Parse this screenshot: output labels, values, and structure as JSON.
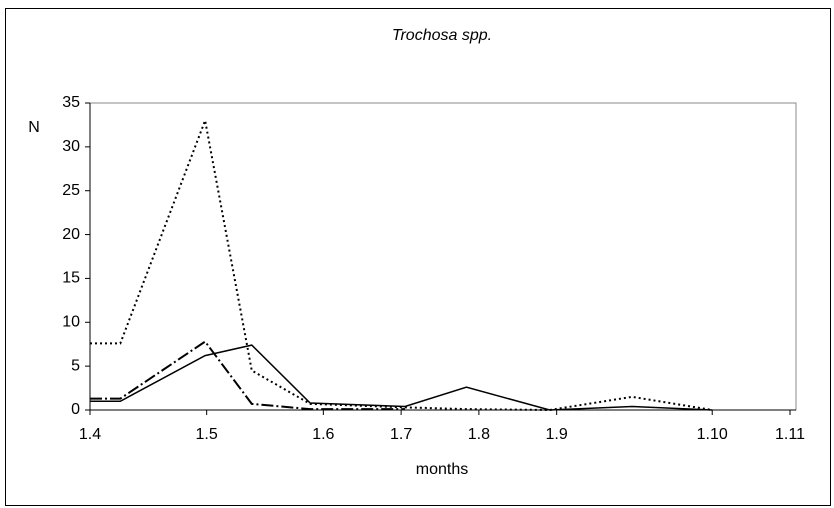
{
  "chart_data": {
    "type": "line",
    "title": "Trochosa spp.",
    "y_label": "N",
    "x_label": "months",
    "x": [
      0,
      0.39,
      1.48,
      2.08,
      2.83,
      4.05,
      4.84,
      5.91,
      6.97,
      8.0
    ],
    "xlim": [
      0,
      9
    ],
    "xticks": [
      {
        "value": 0,
        "label": "1.4"
      },
      {
        "value": 1.5,
        "label": "1.5"
      },
      {
        "value": 3,
        "label": "1.6"
      },
      {
        "value": 4,
        "label": "1.7"
      },
      {
        "value": 5,
        "label": "1.8"
      },
      {
        "value": 6,
        "label": "1.9"
      },
      {
        "value": 8,
        "label": "1.10"
      },
      {
        "value": 9,
        "label": "1.11"
      }
    ],
    "ylim": [
      0,
      35
    ],
    "yticks": [
      0,
      5,
      10,
      15,
      20,
      25,
      30,
      35
    ],
    "series": [
      {
        "color": "#000000",
        "dash": "2,3",
        "width": 2,
        "values": [
          7.6,
          7.6,
          33,
          4.5,
          0.7,
          0.3,
          0.1,
          0,
          1.5,
          0
        ]
      },
      {
        "color": "#000000",
        "dash": "none",
        "width": 1.5,
        "values": [
          1,
          1,
          6.2,
          7.4,
          0.8,
          0.4,
          2.6,
          0,
          0.4,
          0
        ]
      },
      {
        "color": "#000000",
        "dash": "12,3,2,3",
        "width": 2,
        "values": [
          1.3,
          1.3,
          7.8,
          0.7,
          0.1,
          0.1,
          null,
          null,
          null,
          null
        ]
      }
    ]
  }
}
